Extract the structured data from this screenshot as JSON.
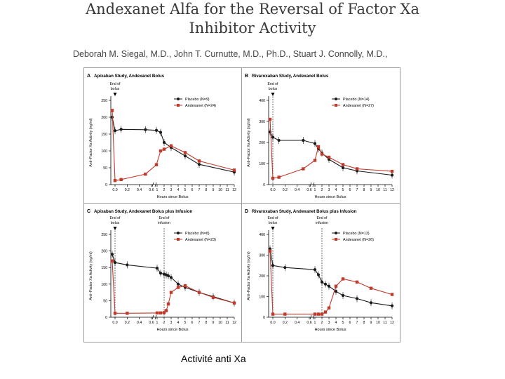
{
  "article": {
    "title_line1": "Andexanet Alfa for the Reversal of Factor Xa",
    "title_line2": "Inhibitor Activity",
    "authors": "Deborah M. Siegal, M.D., John T. Curnutte, M.D., Ph.D., Stuart J. Connolly, M.D.,"
  },
  "caption": "Activité anti Xa",
  "colors": {
    "placebo": "#1a1a1a",
    "andexanet": "#c0392b"
  },
  "chart_data": [
    {
      "type": "line",
      "panel": "A",
      "title": "Apixaban Study, Andexanet Bolus",
      "xlabel": "Hours since Bolus",
      "ylabel": "Anti–Factor Xa Activity (ng/ml)",
      "ylim": [
        0,
        250
      ],
      "yticks": [
        0,
        50,
        100,
        150,
        200,
        250
      ],
      "xticks": [
        "0.0",
        "0.2",
        "0.4",
        "0.6",
        "1",
        "2",
        "3",
        "4",
        "5",
        "6",
        "7",
        "8",
        "9",
        "10",
        "11",
        "12"
      ],
      "annotations": [
        {
          "text": "End of bolus",
          "at": 0.0
        }
      ],
      "legend": "top-right",
      "series": [
        {
          "name": "Placebo (N=9)",
          "x": [
            -0.05,
            0.0,
            0.1,
            0.5,
            0.9,
            1.5,
            2,
            3,
            5,
            7,
            12
          ],
          "y": [
            200,
            160,
            164,
            163,
            161,
            155,
            125,
            110,
            85,
            60,
            37
          ]
        },
        {
          "name": "Andexanet (N=24)",
          "x": [
            -0.05,
            0.0,
            0.1,
            0.5,
            0.9,
            1.5,
            2,
            3,
            5,
            7,
            12
          ],
          "y": [
            220,
            12,
            15,
            31,
            59,
            100,
            105,
            115,
            95,
            70,
            43
          ]
        }
      ]
    },
    {
      "type": "line",
      "panel": "B",
      "title": "Rivaroxaban Study, Andexanet Bolus",
      "xlabel": "Hours since Bolus",
      "ylabel": "Anti–Factor Xa Activity (ng/ml)",
      "ylim": [
        0,
        400
      ],
      "yticks": [
        0,
        100,
        200,
        300,
        400
      ],
      "xticks": [
        "0.0",
        "0.2",
        "0.4",
        "0.6",
        "1",
        "2",
        "3",
        "4",
        "5",
        "6",
        "7",
        "8",
        "9",
        "10",
        "11",
        "12"
      ],
      "annotations": [
        {
          "text": "End of bolus",
          "at": 0.0
        }
      ],
      "legend": "top-right",
      "series": [
        {
          "name": "Placebo (N=14)",
          "x": [
            -0.05,
            0.0,
            0.1,
            0.5,
            1,
            1.5,
            2,
            3,
            5,
            7,
            12
          ],
          "y": [
            250,
            225,
            210,
            210,
            195,
            170,
            150,
            120,
            80,
            65,
            45
          ]
        },
        {
          "name": "Andexanet (N=27)",
          "x": [
            -0.05,
            0.0,
            0.1,
            0.5,
            1,
            1.5,
            2,
            3,
            5,
            7,
            12
          ],
          "y": [
            310,
            30,
            35,
            75,
            115,
            180,
            145,
            130,
            95,
            75,
            63
          ]
        }
      ]
    },
    {
      "type": "line",
      "panel": "C",
      "title": "Apixaban Study, Andexanet Bolus plus Infusion",
      "xlabel": "Hours since Bolus",
      "ylabel": "Anti–Factor Xa Activity (ng/ml)",
      "ylim": [
        0,
        250
      ],
      "yticks": [
        0,
        50,
        100,
        150,
        200,
        250
      ],
      "xticks": [
        "0.0",
        "0.2",
        "0.4",
        "0.6",
        "1",
        "2",
        "3",
        "4",
        "5",
        "6",
        "7",
        "8",
        "9",
        "10",
        "11",
        "12"
      ],
      "annotations": [
        {
          "text": "End of bolus",
          "at": 0.0
        },
        {
          "text": "End of infusion",
          "at": 2.0
        }
      ],
      "legend": "top-right",
      "series": [
        {
          "name": "Placebo (N=8)",
          "x": [
            -0.05,
            0.0,
            0.2,
            1,
            1.5,
            2,
            2.3,
            2.6,
            3,
            4,
            5,
            7,
            9,
            12
          ],
          "y": [
            190,
            165,
            158,
            148,
            133,
            130,
            128,
            125,
            120,
            100,
            90,
            75,
            62,
            43
          ]
        },
        {
          "name": "Andexanet (N=23)",
          "x": [
            -0.05,
            0.0,
            0.2,
            1,
            1.5,
            2,
            2.3,
            2.6,
            3,
            4,
            5,
            7,
            9,
            12
          ],
          "y": [
            170,
            12,
            12,
            13,
            13,
            14,
            20,
            40,
            75,
            90,
            95,
            75,
            60,
            43
          ]
        }
      ]
    },
    {
      "type": "line",
      "panel": "D",
      "title": "Rivaroxaban Study, Andexanet Bolus plus Infusion",
      "xlabel": "Hours since Bolus",
      "ylabel": "Anti–Factor Xa Activity (ng/ml)",
      "ylim": [
        0,
        400
      ],
      "yticks": [
        0,
        100,
        200,
        300,
        400
      ],
      "xticks": [
        "0.0",
        "0.2",
        "0.4",
        "0.6",
        "1",
        "2",
        "3",
        "4",
        "5",
        "6",
        "7",
        "8",
        "9",
        "10",
        "11",
        "12"
      ],
      "annotations": [
        {
          "text": "End of bolus",
          "at": 0.0
        },
        {
          "text": "End of infusion",
          "at": 2.0
        }
      ],
      "legend": "top-right",
      "series": [
        {
          "name": "Placebo (N=13)",
          "x": [
            -0.05,
            0.0,
            0.2,
            1,
            1.5,
            2,
            2.5,
            3,
            4,
            5,
            7,
            9,
            12
          ],
          "y": [
            330,
            250,
            240,
            230,
            205,
            170,
            160,
            150,
            125,
            105,
            90,
            70,
            55
          ]
        },
        {
          "name": "Andexanet (N=26)",
          "x": [
            -0.05,
            0.0,
            0.2,
            1,
            1.5,
            2,
            2.5,
            3,
            4,
            5,
            7,
            9,
            12
          ],
          "y": [
            320,
            15,
            15,
            15,
            15,
            15,
            25,
            45,
            150,
            185,
            170,
            140,
            110
          ]
        }
      ]
    }
  ]
}
